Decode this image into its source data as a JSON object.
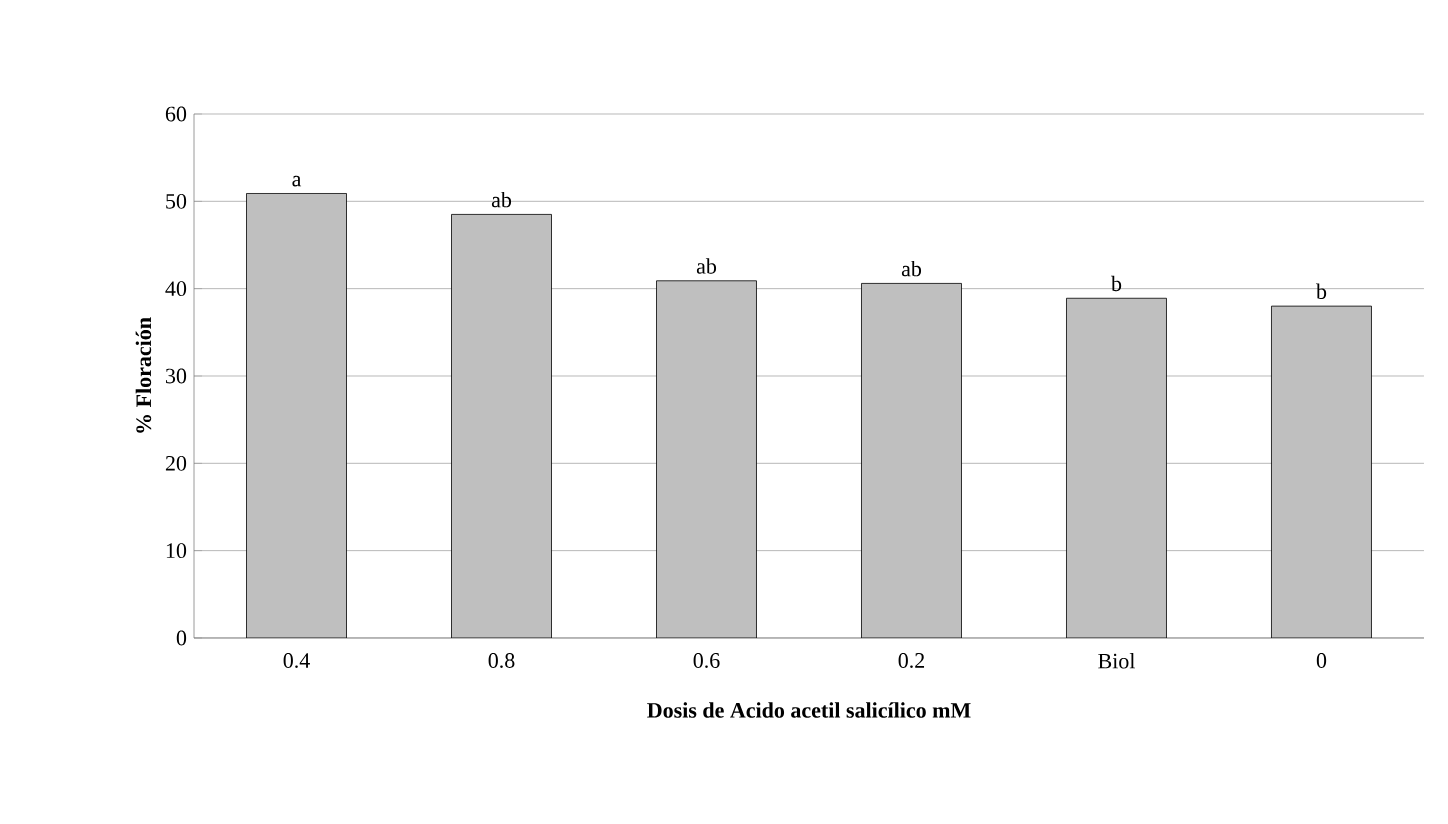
{
  "chart_data": {
    "type": "bar",
    "xlabel": "Dosis de Acido acetil salicílico mM",
    "ylabel": "% Floración",
    "categories": [
      "0.4",
      "0.8",
      "0.6",
      "0.2",
      "Biol",
      "0"
    ],
    "values": [
      50.9,
      48.5,
      40.9,
      40.6,
      38.9,
      38.0
    ],
    "color": "#bfbfbf",
    "ylim": [
      0,
      60
    ],
    "yticks": [
      0,
      10,
      20,
      30,
      40,
      50,
      60
    ],
    "grid": "y",
    "annotations": [
      {
        "text": "a",
        "x": "0.4",
        "y": 50.9
      },
      {
        "text": "ab",
        "x": "0.8",
        "y": 48.5
      },
      {
        "text": "ab",
        "x": "0.6",
        "y": 40.9
      },
      {
        "text": "ab",
        "x": "0.2",
        "y": 40.6
      },
      {
        "text": "b",
        "x": "Biol",
        "y": 38.9
      },
      {
        "text": "b",
        "x": "0",
        "y": 38.0
      }
    ]
  }
}
